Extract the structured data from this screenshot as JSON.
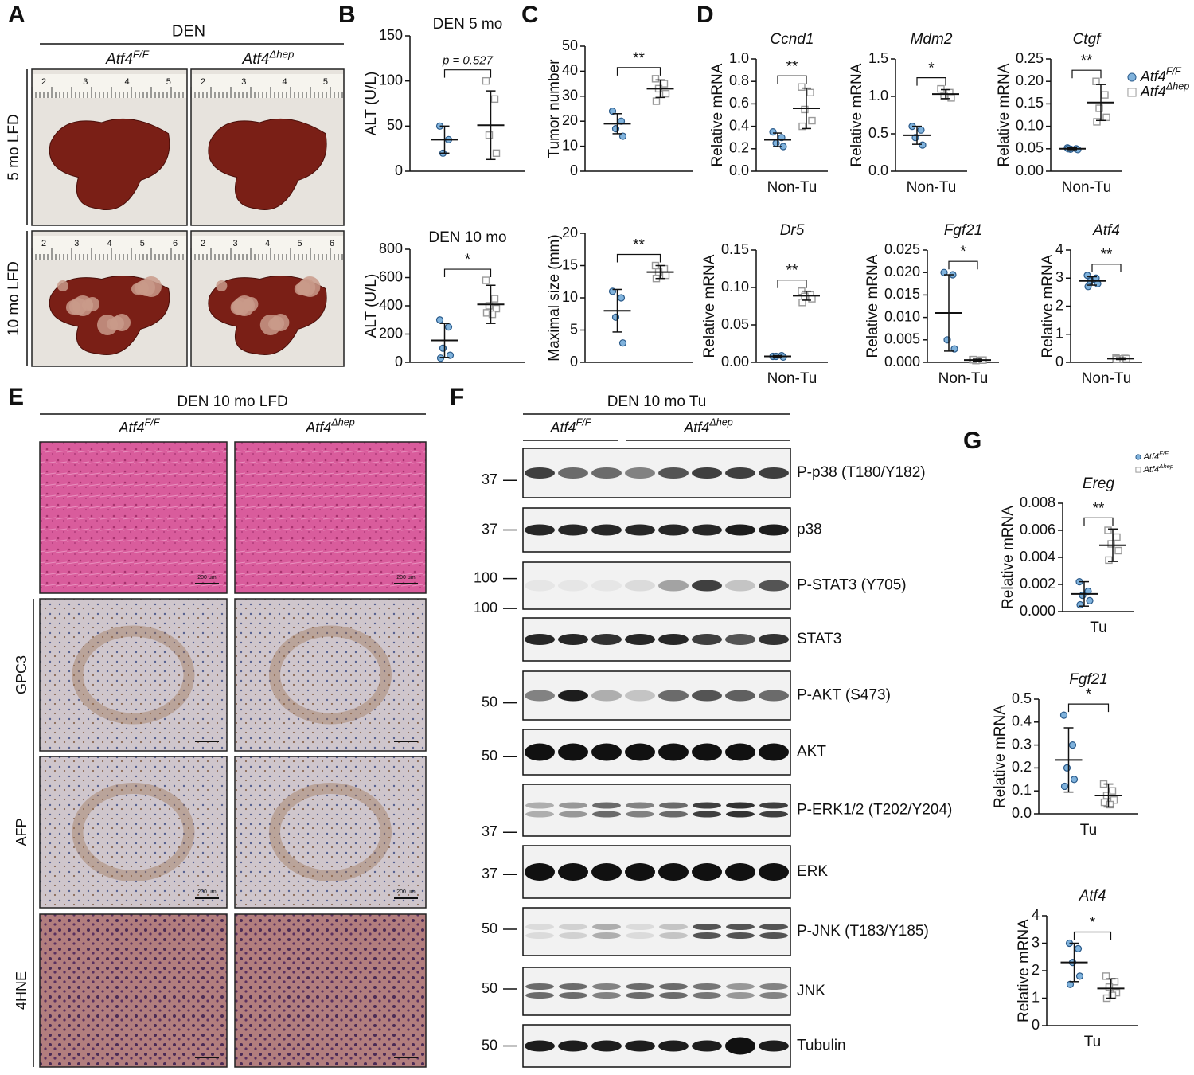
{
  "panels": [
    "A",
    "B",
    "C",
    "D",
    "E",
    "F",
    "G"
  ],
  "genotypes": [
    {
      "gene": "Atf4",
      "sup": "F/F",
      "color": "#7fb2dc"
    },
    {
      "gene": "Atf4",
      "sup": "Δhep",
      "color": "#9a9a9a"
    }
  ],
  "photos": {
    "title": "DEN",
    "rows": [
      "5 mo LFD",
      "10 mo LFD"
    ],
    "rulers": [
      [
        "2",
        "3",
        "4",
        "5"
      ],
      [
        "2",
        "3",
        "4",
        "5"
      ],
      [
        "2",
        "3",
        "4",
        "5",
        "6"
      ],
      [
        "2",
        "3",
        "4",
        "5",
        "6"
      ]
    ]
  },
  "histology": {
    "title": "DEN 10 mo LFD",
    "rows": [
      "GPC3",
      "AFP",
      "4HNE"
    ],
    "scale_bar": "200 μm"
  },
  "blot": {
    "title": "DEN 10 mo Tu",
    "rows": [
      {
        "label": "P-p38 (T180/Y182)",
        "marker": "37"
      },
      {
        "label": "p38",
        "marker": "37"
      },
      {
        "label": "P-STAT3 (Y705)",
        "marker": "100"
      },
      {
        "label": "STAT3",
        "marker": "100"
      },
      {
        "label": "P-AKT (S473)",
        "marker": "50"
      },
      {
        "label": "AKT",
        "marker": "50"
      },
      {
        "label": "P-ERK1/2 (T202/Y204)",
        "marker": "37"
      },
      {
        "label": "ERK",
        "marker": "37"
      },
      {
        "label": "P-JNK (T183/Y185)",
        "marker": "50"
      },
      {
        "label": "JNK",
        "marker": "50"
      },
      {
        "label": "Tubulin",
        "marker": "50"
      }
    ]
  },
  "chart_data": [
    {
      "type": "dotplot",
      "title": "DEN 5 mo",
      "ylabel": "ALT (U/L)",
      "ylim": [
        0,
        150
      ],
      "yticks": [
        0,
        50,
        100,
        150
      ],
      "annotation": "p = 0.527",
      "series": [
        {
          "values": [
            50,
            35,
            20
          ],
          "mean": 35,
          "sd": 15
        },
        {
          "values": [
            100,
            80,
            40,
            20
          ],
          "mean": 51,
          "sd": 38
        }
      ]
    },
    {
      "type": "dotplot",
      "title": "DEN 10 mo",
      "ylabel": "ALT (U/L)",
      "ylim": [
        0,
        800
      ],
      "yticks": [
        0,
        200,
        400,
        600,
        800
      ],
      "significance": "*",
      "series": [
        {
          "values": [
            300,
            250,
            100,
            50,
            30
          ],
          "mean": 155,
          "sd": 120
        },
        {
          "values": [
            580,
            450,
            400,
            380,
            350,
            340
          ],
          "mean": 410,
          "sd": 135
        }
      ]
    },
    {
      "type": "dotplot",
      "ylabel": "Tumor number",
      "ylim": [
        0,
        50
      ],
      "yticks": [
        0,
        10,
        20,
        30,
        40,
        50
      ],
      "significance": "**",
      "series": [
        {
          "values": [
            24,
            20,
            17,
            14
          ],
          "mean": 19,
          "sd": 4
        },
        {
          "values": [
            37,
            35,
            33,
            31,
            28
          ],
          "mean": 33,
          "sd": 3.5
        }
      ]
    },
    {
      "type": "dotplot",
      "ylabel": "Maximal size (mm)",
      "ylim": [
        0,
        20
      ],
      "yticks": [
        0,
        5,
        10,
        15,
        20
      ],
      "significance": "**",
      "series": [
        {
          "values": [
            11,
            10,
            7,
            3
          ],
          "mean": 8,
          "sd": 3.3
        },
        {
          "values": [
            15,
            14.5,
            14,
            13.5,
            13
          ],
          "mean": 14,
          "sd": 1
        }
      ]
    },
    {
      "type": "dotplot",
      "gene": "Ccnd1",
      "ylabel": "Relative mRNA",
      "category": "Non-Tu",
      "ylim": [
        0,
        1
      ],
      "yticks": [
        {
          "value": 0,
          "label": "0.0"
        },
        0.2,
        0.4,
        0.6,
        0.8,
        {
          "value": 1,
          "label": "1.0"
        }
      ],
      "significance": "**",
      "series": [
        {
          "values": [
            0.35,
            0.3,
            0.25,
            0.22
          ],
          "mean": 0.28,
          "sd": 0.06
        },
        {
          "values": [
            0.75,
            0.7,
            0.55,
            0.45,
            0.4
          ],
          "mean": 0.56,
          "sd": 0.18
        }
      ]
    },
    {
      "type": "dotplot",
      "gene": "Mdm2",
      "ylabel": "Relative mRNA",
      "category": "Non-Tu",
      "ylim": [
        0,
        1.5
      ],
      "yticks": [
        {
          "value": 0,
          "label": "0.0"
        },
        0.5,
        {
          "value": 1,
          "label": "1.0"
        },
        1.5
      ],
      "significance": "*",
      "series": [
        {
          "values": [
            0.6,
            0.55,
            0.45,
            0.35
          ],
          "mean": 0.48,
          "sd": 0.12
        },
        {
          "values": [
            1.1,
            1.05,
            1,
            0.98
          ],
          "mean": 1.03,
          "sd": 0.06
        }
      ]
    },
    {
      "type": "dotplot",
      "gene": "Ctgf",
      "ylabel": "Relative mRNA",
      "category": "Non-Tu",
      "ylim": [
        0,
        0.25
      ],
      "yticks": [
        {
          "value": 0,
          "label": "0.00"
        },
        0.05,
        {
          "value": 0.1,
          "label": "0.10"
        },
        0.15,
        {
          "value": 0.2,
          "label": "0.20"
        },
        0.25
      ],
      "significance": "**",
      "series": [
        {
          "values": [
            0.052,
            0.05,
            0.049,
            0.048,
            0.05
          ],
          "mean": 0.05,
          "sd": 0.002
        },
        {
          "values": [
            0.2,
            0.17,
            0.14,
            0.12,
            0.11
          ],
          "mean": 0.153,
          "sd": 0.04
        }
      ]
    },
    {
      "type": "dotplot",
      "gene": "Dr5",
      "ylabel": "Relative mRNA",
      "category": "Non-Tu",
      "ylim": [
        0,
        0.15
      ],
      "yticks": [
        {
          "value": 0,
          "label": "0.00"
        },
        0.05,
        {
          "value": 0.1,
          "label": "0.10"
        },
        0.15
      ],
      "significance": "**",
      "series": [
        {
          "values": [
            0.008,
            0.009,
            0.008,
            0.007
          ],
          "mean": 0.008,
          "sd": 0.001
        },
        {
          "values": [
            0.095,
            0.09,
            0.088,
            0.085,
            0.08
          ],
          "mean": 0.089,
          "sd": 0.006
        }
      ]
    },
    {
      "type": "dotplot",
      "gene": "Fgf21",
      "ylabel": "Relative mRNA",
      "category": "Non-Tu",
      "ylim": [
        0,
        0.025
      ],
      "yticks": [
        {
          "value": 0,
          "label": "0.000"
        },
        0.005,
        {
          "value": 0.01,
          "label": "0.010"
        },
        0.015,
        {
          "value": 0.02,
          "label": "0.020"
        },
        0.025
      ],
      "significance": "*",
      "series": [
        {
          "values": [
            0.02,
            0.0195,
            0.005,
            0.003
          ],
          "mean": 0.011,
          "sd": 0.0085
        },
        {
          "values": [
            0.0006,
            0.0005,
            0.0004,
            0.0005,
            0.0006
          ],
          "mean": 0.0005,
          "sd": 0.0002
        }
      ]
    },
    {
      "type": "dotplot",
      "gene": "Atf4",
      "ylabel": "Relative mRNA",
      "category": "Non-Tu",
      "ylim": [
        0,
        4
      ],
      "yticks": [
        0,
        1,
        2,
        3,
        4
      ],
      "significance": "**",
      "series": [
        {
          "values": [
            3.1,
            3,
            2.9,
            2.8,
            2.7
          ],
          "mean": 2.9,
          "sd": 0.15
        },
        {
          "values": [
            0.15,
            0.14,
            0.12,
            0.13,
            0.11
          ],
          "mean": 0.13,
          "sd": 0.03
        }
      ]
    },
    {
      "type": "dotplot",
      "gene": "Ereg",
      "ylabel": "Relative mRNA",
      "category": "Tu",
      "ylim": [
        0,
        0.008
      ],
      "yticks": [
        {
          "value": 0,
          "label": "0.000"
        },
        0.002,
        0.004,
        0.006,
        0.008
      ],
      "significance": "**",
      "series": [
        {
          "values": [
            0.0022,
            0.0015,
            0.0012,
            0.0008,
            0.0005
          ],
          "mean": 0.0013,
          "sd": 0.0009
        },
        {
          "values": [
            0.006,
            0.0055,
            0.005,
            0.0045,
            0.0038
          ],
          "mean": 0.0049,
          "sd": 0.0012
        }
      ]
    },
    {
      "type": "dotplot",
      "gene": "Fgf21",
      "ylabel": "Relative mRNA",
      "category": "Tu",
      "ylim": [
        0,
        0.5
      ],
      "yticks": [
        {
          "value": 0,
          "label": "0.0"
        },
        0.1,
        0.2,
        0.3,
        0.4,
        0.5
      ],
      "significance": "*",
      "series": [
        {
          "values": [
            0.43,
            0.3,
            0.2,
            0.15,
            0.12
          ],
          "mean": 0.235,
          "sd": 0.14
        },
        {
          "values": [
            0.13,
            0.1,
            0.08,
            0.06,
            0.05,
            0.04
          ],
          "mean": 0.08,
          "sd": 0.05
        }
      ]
    },
    {
      "type": "dotplot",
      "gene": "Atf4",
      "ylabel": "Relative mRNA",
      "category": "Tu",
      "ylim": [
        0,
        4
      ],
      "yticks": [
        0,
        1,
        2,
        3,
        4
      ],
      "significance": "*",
      "series": [
        {
          "values": [
            3,
            2.8,
            2.3,
            1.8,
            1.5
          ],
          "mean": 2.3,
          "sd": 0.7
        },
        {
          "values": [
            1.8,
            1.6,
            1.4,
            1.2,
            1,
            1.1
          ],
          "mean": 1.35,
          "sd": 0.35
        }
      ]
    }
  ]
}
